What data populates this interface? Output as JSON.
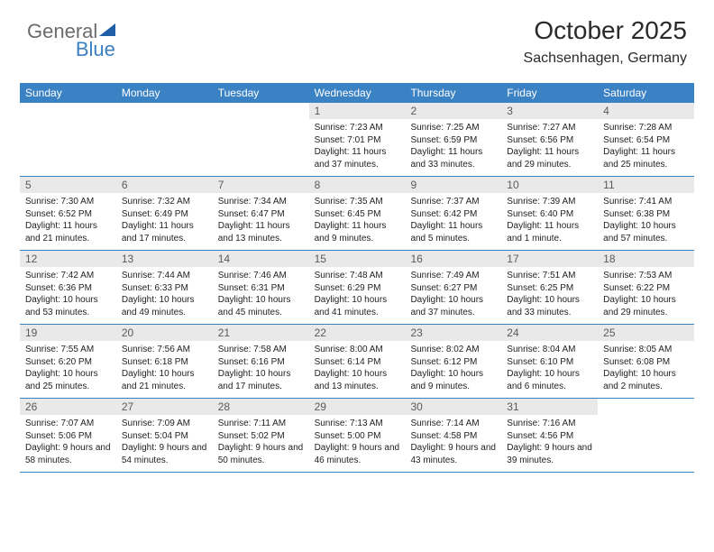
{
  "logo": {
    "word1": "General",
    "word2": "Blue"
  },
  "header": {
    "month_title": "October 2025",
    "location": "Sachsenhagen, Germany"
  },
  "colors": {
    "header_bg": "#3b82c4",
    "header_text": "#ffffff",
    "daynum_bg": "#e9e9e9",
    "daynum_text": "#5a5a5a",
    "body_text": "#222222",
    "rule": "#3b82c4"
  },
  "typography": {
    "title_fontsize": 28,
    "location_fontsize": 16,
    "weekday_fontsize": 12,
    "daynum_fontsize": 12,
    "body_fontsize": 10
  },
  "day_headers": [
    "Sunday",
    "Monday",
    "Tuesday",
    "Wednesday",
    "Thursday",
    "Friday",
    "Saturday"
  ],
  "weeks": [
    [
      {
        "num": "",
        "sunrise": "",
        "sunset": "",
        "daylight": ""
      },
      {
        "num": "",
        "sunrise": "",
        "sunset": "",
        "daylight": ""
      },
      {
        "num": "",
        "sunrise": "",
        "sunset": "",
        "daylight": ""
      },
      {
        "num": "1",
        "sunrise": "Sunrise: 7:23 AM",
        "sunset": "Sunset: 7:01 PM",
        "daylight": "Daylight: 11 hours and 37 minutes."
      },
      {
        "num": "2",
        "sunrise": "Sunrise: 7:25 AM",
        "sunset": "Sunset: 6:59 PM",
        "daylight": "Daylight: 11 hours and 33 minutes."
      },
      {
        "num": "3",
        "sunrise": "Sunrise: 7:27 AM",
        "sunset": "Sunset: 6:56 PM",
        "daylight": "Daylight: 11 hours and 29 minutes."
      },
      {
        "num": "4",
        "sunrise": "Sunrise: 7:28 AM",
        "sunset": "Sunset: 6:54 PM",
        "daylight": "Daylight: 11 hours and 25 minutes."
      }
    ],
    [
      {
        "num": "5",
        "sunrise": "Sunrise: 7:30 AM",
        "sunset": "Sunset: 6:52 PM",
        "daylight": "Daylight: 11 hours and 21 minutes."
      },
      {
        "num": "6",
        "sunrise": "Sunrise: 7:32 AM",
        "sunset": "Sunset: 6:49 PM",
        "daylight": "Daylight: 11 hours and 17 minutes."
      },
      {
        "num": "7",
        "sunrise": "Sunrise: 7:34 AM",
        "sunset": "Sunset: 6:47 PM",
        "daylight": "Daylight: 11 hours and 13 minutes."
      },
      {
        "num": "8",
        "sunrise": "Sunrise: 7:35 AM",
        "sunset": "Sunset: 6:45 PM",
        "daylight": "Daylight: 11 hours and 9 minutes."
      },
      {
        "num": "9",
        "sunrise": "Sunrise: 7:37 AM",
        "sunset": "Sunset: 6:42 PM",
        "daylight": "Daylight: 11 hours and 5 minutes."
      },
      {
        "num": "10",
        "sunrise": "Sunrise: 7:39 AM",
        "sunset": "Sunset: 6:40 PM",
        "daylight": "Daylight: 11 hours and 1 minute."
      },
      {
        "num": "11",
        "sunrise": "Sunrise: 7:41 AM",
        "sunset": "Sunset: 6:38 PM",
        "daylight": "Daylight: 10 hours and 57 minutes."
      }
    ],
    [
      {
        "num": "12",
        "sunrise": "Sunrise: 7:42 AM",
        "sunset": "Sunset: 6:36 PM",
        "daylight": "Daylight: 10 hours and 53 minutes."
      },
      {
        "num": "13",
        "sunrise": "Sunrise: 7:44 AM",
        "sunset": "Sunset: 6:33 PM",
        "daylight": "Daylight: 10 hours and 49 minutes."
      },
      {
        "num": "14",
        "sunrise": "Sunrise: 7:46 AM",
        "sunset": "Sunset: 6:31 PM",
        "daylight": "Daylight: 10 hours and 45 minutes."
      },
      {
        "num": "15",
        "sunrise": "Sunrise: 7:48 AM",
        "sunset": "Sunset: 6:29 PM",
        "daylight": "Daylight: 10 hours and 41 minutes."
      },
      {
        "num": "16",
        "sunrise": "Sunrise: 7:49 AM",
        "sunset": "Sunset: 6:27 PM",
        "daylight": "Daylight: 10 hours and 37 minutes."
      },
      {
        "num": "17",
        "sunrise": "Sunrise: 7:51 AM",
        "sunset": "Sunset: 6:25 PM",
        "daylight": "Daylight: 10 hours and 33 minutes."
      },
      {
        "num": "18",
        "sunrise": "Sunrise: 7:53 AM",
        "sunset": "Sunset: 6:22 PM",
        "daylight": "Daylight: 10 hours and 29 minutes."
      }
    ],
    [
      {
        "num": "19",
        "sunrise": "Sunrise: 7:55 AM",
        "sunset": "Sunset: 6:20 PM",
        "daylight": "Daylight: 10 hours and 25 minutes."
      },
      {
        "num": "20",
        "sunrise": "Sunrise: 7:56 AM",
        "sunset": "Sunset: 6:18 PM",
        "daylight": "Daylight: 10 hours and 21 minutes."
      },
      {
        "num": "21",
        "sunrise": "Sunrise: 7:58 AM",
        "sunset": "Sunset: 6:16 PM",
        "daylight": "Daylight: 10 hours and 17 minutes."
      },
      {
        "num": "22",
        "sunrise": "Sunrise: 8:00 AM",
        "sunset": "Sunset: 6:14 PM",
        "daylight": "Daylight: 10 hours and 13 minutes."
      },
      {
        "num": "23",
        "sunrise": "Sunrise: 8:02 AM",
        "sunset": "Sunset: 6:12 PM",
        "daylight": "Daylight: 10 hours and 9 minutes."
      },
      {
        "num": "24",
        "sunrise": "Sunrise: 8:04 AM",
        "sunset": "Sunset: 6:10 PM",
        "daylight": "Daylight: 10 hours and 6 minutes."
      },
      {
        "num": "25",
        "sunrise": "Sunrise: 8:05 AM",
        "sunset": "Sunset: 6:08 PM",
        "daylight": "Daylight: 10 hours and 2 minutes."
      }
    ],
    [
      {
        "num": "26",
        "sunrise": "Sunrise: 7:07 AM",
        "sunset": "Sunset: 5:06 PM",
        "daylight": "Daylight: 9 hours and 58 minutes."
      },
      {
        "num": "27",
        "sunrise": "Sunrise: 7:09 AM",
        "sunset": "Sunset: 5:04 PM",
        "daylight": "Daylight: 9 hours and 54 minutes."
      },
      {
        "num": "28",
        "sunrise": "Sunrise: 7:11 AM",
        "sunset": "Sunset: 5:02 PM",
        "daylight": "Daylight: 9 hours and 50 minutes."
      },
      {
        "num": "29",
        "sunrise": "Sunrise: 7:13 AM",
        "sunset": "Sunset: 5:00 PM",
        "daylight": "Daylight: 9 hours and 46 minutes."
      },
      {
        "num": "30",
        "sunrise": "Sunrise: 7:14 AM",
        "sunset": "Sunset: 4:58 PM",
        "daylight": "Daylight: 9 hours and 43 minutes."
      },
      {
        "num": "31",
        "sunrise": "Sunrise: 7:16 AM",
        "sunset": "Sunset: 4:56 PM",
        "daylight": "Daylight: 9 hours and 39 minutes."
      },
      {
        "num": "",
        "sunrise": "",
        "sunset": "",
        "daylight": ""
      }
    ]
  ]
}
